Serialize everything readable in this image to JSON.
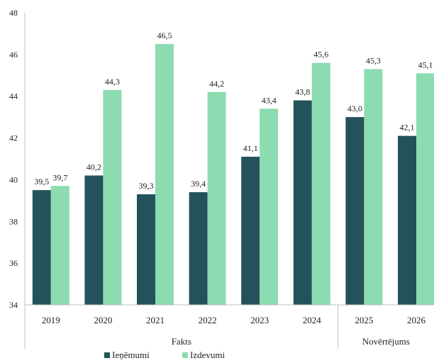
{
  "chart_data": {
    "type": "bar",
    "categories": [
      "2019",
      "2020",
      "2021",
      "2022",
      "2023",
      "2024",
      "2025",
      "2026"
    ],
    "groups": [
      {
        "label": "Fakts",
        "from": 0,
        "to": 5
      },
      {
        "label": "Novērtējums",
        "from": 6,
        "to": 7
      }
    ],
    "series": [
      {
        "name": "Ieņēmumi",
        "color": "#24525a",
        "values": [
          39.5,
          40.2,
          39.3,
          39.4,
          41.1,
          43.8,
          43.0,
          42.1
        ],
        "labels": [
          "39,5",
          "40,2",
          "39,3",
          "39,4",
          "41,1",
          "43,8",
          "43,0",
          "42,1"
        ]
      },
      {
        "name": "Izdevumi",
        "color": "#8ddbb0",
        "values": [
          39.7,
          44.3,
          46.5,
          44.2,
          43.4,
          45.6,
          45.3,
          45.1
        ],
        "labels": [
          "39,7",
          "44,3",
          "46,5",
          "44,2",
          "43,4",
          "45,6",
          "45,3",
          "45,1"
        ]
      }
    ],
    "y_ticks": [
      "34",
      "36",
      "38",
      "40",
      "42",
      "44",
      "46",
      "48"
    ],
    "ylim": [
      34,
      48
    ],
    "grid": false,
    "legend": "bottom-left"
  }
}
